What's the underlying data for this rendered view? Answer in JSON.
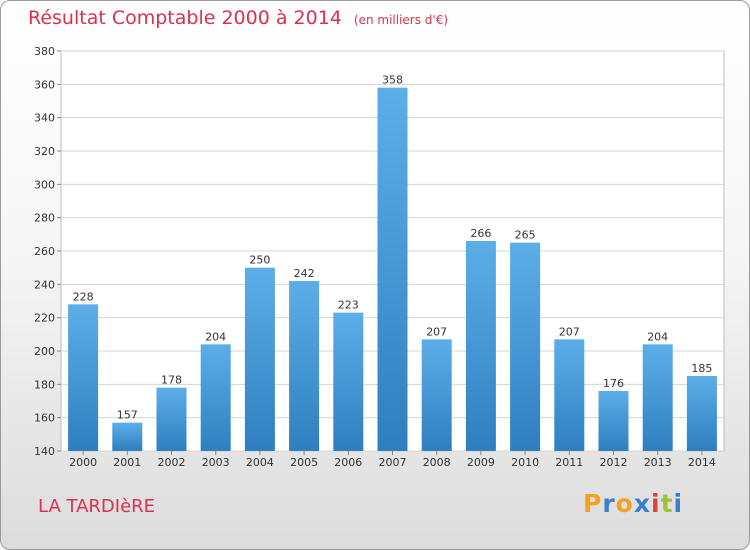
{
  "header": {
    "title": "Résultat Comptable 2000 à 2014",
    "subtitle": "(en milliers d'€)"
  },
  "footer": {
    "commune": "LA TARDIèRE",
    "logo": "Proxiti"
  },
  "colors": {
    "title": "#d9314e",
    "bar_top": "#5caee8",
    "bar_bottom": "#2f7fc0",
    "grid": "#d4d4d4",
    "logo_letters": [
      "#f4a020",
      "#3a7fc8",
      "#f4a020",
      "#3a7fc8",
      "#e0413a",
      "#9bc437",
      "#3a7fc8"
    ]
  },
  "chart_data": {
    "type": "bar",
    "title": "Résultat Comptable 2000 à 2014",
    "subtitle": "(en milliers d'€)",
    "xlabel": "",
    "ylabel": "",
    "categories": [
      "2000",
      "2001",
      "2002",
      "2003",
      "2004",
      "2005",
      "2006",
      "2007",
      "2008",
      "2009",
      "2010",
      "2011",
      "2012",
      "2013",
      "2014"
    ],
    "values": [
      228,
      157,
      178,
      204,
      250,
      242,
      223,
      358,
      207,
      266,
      265,
      207,
      176,
      204,
      185
    ],
    "ylim": [
      140,
      380
    ],
    "yticks": [
      140,
      160,
      180,
      200,
      220,
      240,
      260,
      280,
      300,
      320,
      340,
      360,
      380
    ],
    "grid": true
  }
}
